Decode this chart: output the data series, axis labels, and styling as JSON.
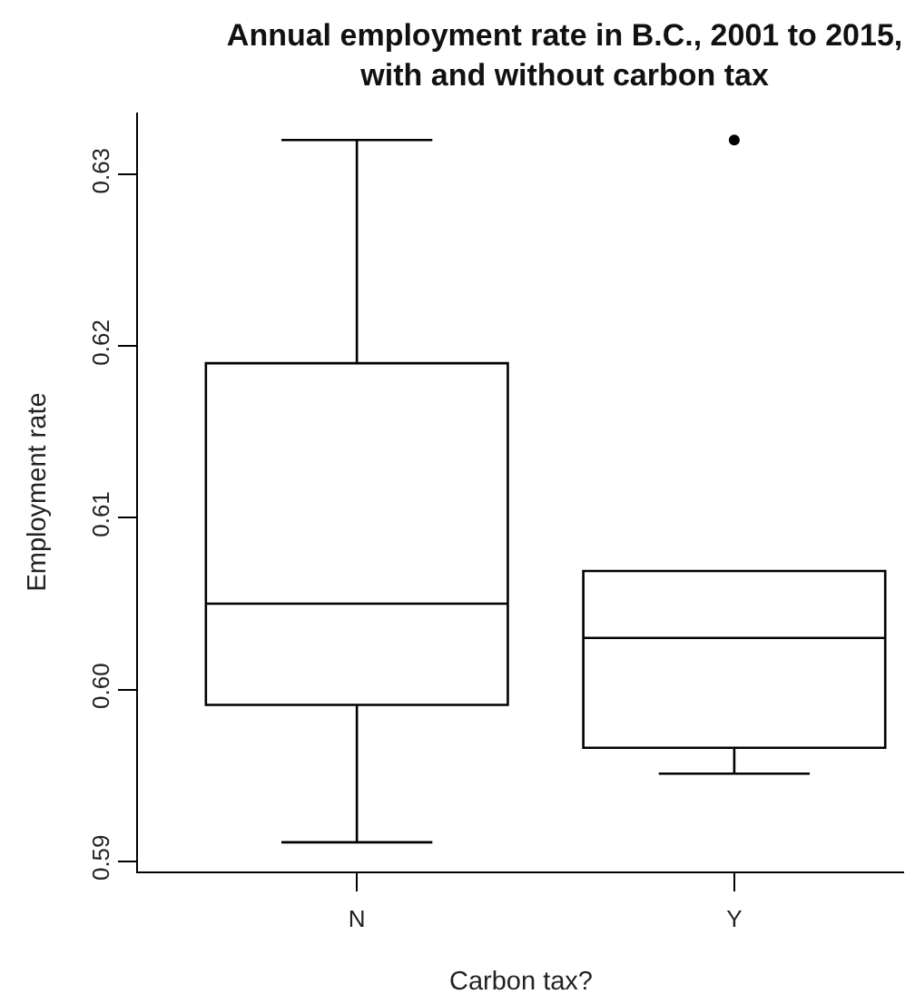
{
  "chart_data": {
    "type": "box",
    "title": "Annual employment rate in B.C., 2001 to 2015,\nwith and without carbon tax",
    "xlabel": "Carbon tax?",
    "ylabel": "Employment rate",
    "categories": [
      "N",
      "Y"
    ],
    "series": [
      {
        "color": "#000000",
        "boxes": [
          {
            "low": 0.5911,
            "q1": 0.5991,
            "median": 0.605,
            "q3": 0.619,
            "high": 0.632
          },
          {
            "low": 0.5951,
            "q1": 0.5966,
            "median": 0.603,
            "q3": 0.6069,
            "high": 0.6069,
            "outliers": [
              0.632
            ]
          }
        ]
      }
    ],
    "ylim": [
      0.5894,
      0.6336
    ],
    "yticks": [
      0.59,
      {
        "value": 0.6,
        "label": "0.60"
      },
      0.61,
      0.62,
      0.63
    ],
    "grid": false
  }
}
